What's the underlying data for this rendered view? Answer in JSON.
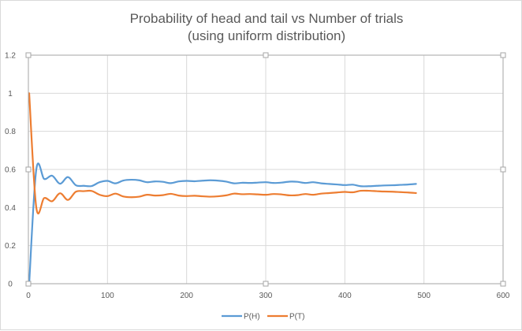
{
  "chart_data": {
    "type": "line",
    "title": [
      "Probability of head and tail vs Number of trials",
      "(using uniform distribution)"
    ],
    "xlabel": "",
    "ylabel": "",
    "xlim": [
      0,
      600
    ],
    "ylim": [
      0,
      1.2
    ],
    "x_ticks": [
      0,
      100,
      200,
      300,
      400,
      500,
      600
    ],
    "x_tick_labels": [
      "0",
      "100",
      "200",
      "300",
      "400",
      "500",
      "600"
    ],
    "y_ticks": [
      0,
      0.2,
      0.4,
      0.6,
      0.8,
      1,
      1.2
    ],
    "y_tick_labels": [
      "0",
      "0.2",
      "0.4",
      "0.6",
      "0.8",
      "1",
      "1.2"
    ],
    "grid": true,
    "legend_position": "bottom",
    "series": [
      {
        "name": "P(H)",
        "color": "#5b9bd5",
        "x": [
          1,
          10,
          20,
          30,
          40,
          50,
          60,
          70,
          80,
          90,
          100,
          110,
          120,
          130,
          140,
          150,
          160,
          170,
          180,
          190,
          200,
          210,
          220,
          230,
          240,
          250,
          260,
          270,
          280,
          290,
          300,
          310,
          320,
          330,
          340,
          350,
          360,
          370,
          380,
          390,
          400,
          410,
          420,
          430,
          440,
          450,
          460,
          470,
          480,
          490
        ],
        "y": [
          0.0,
          0.6,
          0.55,
          0.567,
          0.525,
          0.56,
          0.517,
          0.514,
          0.513,
          0.533,
          0.54,
          0.527,
          0.542,
          0.546,
          0.543,
          0.533,
          0.537,
          0.535,
          0.528,
          0.537,
          0.54,
          0.538,
          0.541,
          0.543,
          0.541,
          0.536,
          0.527,
          0.53,
          0.529,
          0.531,
          0.533,
          0.529,
          0.531,
          0.536,
          0.535,
          0.529,
          0.533,
          0.527,
          0.524,
          0.521,
          0.518,
          0.52,
          0.512,
          0.512,
          0.514,
          0.516,
          0.517,
          0.519,
          0.521,
          0.524
        ]
      },
      {
        "name": "P(T)",
        "color": "#ed7d31",
        "x": [
          1,
          10,
          20,
          30,
          40,
          50,
          60,
          70,
          80,
          90,
          100,
          110,
          120,
          130,
          140,
          150,
          160,
          170,
          180,
          190,
          200,
          210,
          220,
          230,
          240,
          250,
          260,
          270,
          280,
          290,
          300,
          310,
          320,
          330,
          340,
          350,
          360,
          370,
          380,
          390,
          400,
          410,
          420,
          430,
          440,
          450,
          460,
          470,
          480,
          490
        ],
        "y": [
          1.0,
          0.4,
          0.45,
          0.433,
          0.475,
          0.44,
          0.483,
          0.486,
          0.487,
          0.467,
          0.46,
          0.473,
          0.458,
          0.454,
          0.457,
          0.467,
          0.463,
          0.465,
          0.472,
          0.463,
          0.46,
          0.462,
          0.459,
          0.457,
          0.459,
          0.464,
          0.473,
          0.47,
          0.471,
          0.469,
          0.467,
          0.471,
          0.469,
          0.464,
          0.465,
          0.471,
          0.467,
          0.473,
          0.476,
          0.479,
          0.482,
          0.48,
          0.488,
          0.488,
          0.486,
          0.484,
          0.483,
          0.481,
          0.479,
          0.476
        ]
      }
    ]
  }
}
